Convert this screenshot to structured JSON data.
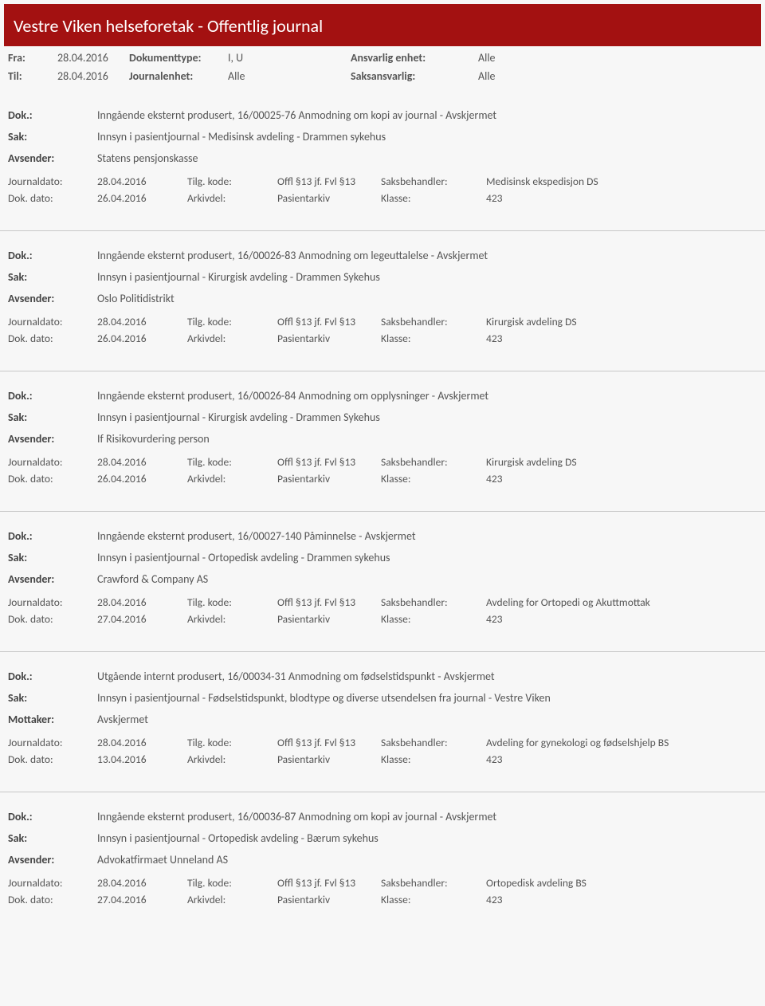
{
  "header": {
    "title": "Vestre Viken helseforetak - Offentlig journal"
  },
  "filters": {
    "fra_label": "Fra:",
    "fra_value": "28.04.2016",
    "til_label": "Til:",
    "til_value": "28.04.2016",
    "doktype_label": "Dokumenttype:",
    "doktype_value": "I, U",
    "journalenhet_label": "Journalenhet:",
    "journalenhet_value": "Alle",
    "ansvarlig_label": "Ansvarlig enhet:",
    "ansvarlig_value": "Alle",
    "saksansvarlig_label": "Saksansvarlig:",
    "saksansvarlig_value": "Alle"
  },
  "labels": {
    "dok": "Dok.:",
    "sak": "Sak:",
    "avsender": "Avsender:",
    "mottaker": "Mottaker:",
    "journaldato": "Journaldato:",
    "dokdato": "Dok. dato:",
    "tilgkode": "Tilg. kode:",
    "arkivdel": "Arkivdel:",
    "saksbehandler": "Saksbehandler:",
    "klasse": "Klasse:"
  },
  "entries": [
    {
      "dok": "Inngående eksternt produsert, 16/00025-76 Anmodning om kopi av journal - Avskjermet",
      "sak": "Innsyn i pasientjournal - Medisinsk avdeling - Drammen sykehus",
      "party_label": "Avsender:",
      "party": "Statens pensjonskasse",
      "journaldato": "28.04.2016",
      "tilgkode": "Offl §13 jf. Fvl §13",
      "saksbehandler": "Medisinsk ekspedisjon DS",
      "dokdato": "26.04.2016",
      "arkivdel": "Pasientarkiv",
      "klasse": "423"
    },
    {
      "dok": "Inngående eksternt produsert, 16/00026-83 Anmodning om legeuttalelse - Avskjermet",
      "sak": "Innsyn i pasientjournal - Kirurgisk avdeling - Drammen Sykehus",
      "party_label": "Avsender:",
      "party": "Oslo Politidistrikt",
      "journaldato": "28.04.2016",
      "tilgkode": "Offl §13 jf. Fvl §13",
      "saksbehandler": "Kirurgisk avdeling DS",
      "dokdato": "26.04.2016",
      "arkivdel": "Pasientarkiv",
      "klasse": "423"
    },
    {
      "dok": "Inngående eksternt produsert, 16/00026-84 Anmodning om opplysninger - Avskjermet",
      "sak": "Innsyn i pasientjournal - Kirurgisk avdeling - Drammen Sykehus",
      "party_label": "Avsender:",
      "party": "If Risikovurdering person",
      "journaldato": "28.04.2016",
      "tilgkode": "Offl §13 jf. Fvl §13",
      "saksbehandler": "Kirurgisk avdeling DS",
      "dokdato": "26.04.2016",
      "arkivdel": "Pasientarkiv",
      "klasse": "423"
    },
    {
      "dok": "Inngående eksternt produsert, 16/00027-140 Påminnelse - Avskjermet",
      "sak": "Innsyn i pasientjournal - Ortopedisk avdeling - Drammen sykehus",
      "party_label": "Avsender:",
      "party": "Crawford & Company AS",
      "journaldato": "28.04.2016",
      "tilgkode": "Offl §13 jf. Fvl §13",
      "saksbehandler": "Avdeling for Ortopedi og Akuttmottak",
      "dokdato": "27.04.2016",
      "arkivdel": "Pasientarkiv",
      "klasse": "423"
    },
    {
      "dok": "Utgående internt produsert, 16/00034-31 Anmodning om fødselstidspunkt - Avskjermet",
      "sak": "Innsyn i pasientjournal - Fødselstidspunkt, blodtype og diverse utsendelsen fra journal - Vestre Viken",
      "party_label": "Mottaker:",
      "party": "Avskjermet",
      "journaldato": "28.04.2016",
      "tilgkode": "Offl §13 jf. Fvl §13",
      "saksbehandler": "Avdeling for gynekologi og fødselshjelp BS",
      "dokdato": "13.04.2016",
      "arkivdel": "Pasientarkiv",
      "klasse": "423"
    },
    {
      "dok": "Inngående eksternt produsert, 16/00036-87 Anmodning om kopi av journal - Avskjermet",
      "sak": "Innsyn i pasientjournal - Ortopedisk avdeling - Bærum sykehus",
      "party_label": "Avsender:",
      "party": "Advokatfirmaet Unneland AS",
      "journaldato": "28.04.2016",
      "tilgkode": "Offl §13 jf. Fvl §13",
      "saksbehandler": "Ortopedisk avdeling BS",
      "dokdato": "27.04.2016",
      "arkivdel": "Pasientarkiv",
      "klasse": "423"
    }
  ]
}
